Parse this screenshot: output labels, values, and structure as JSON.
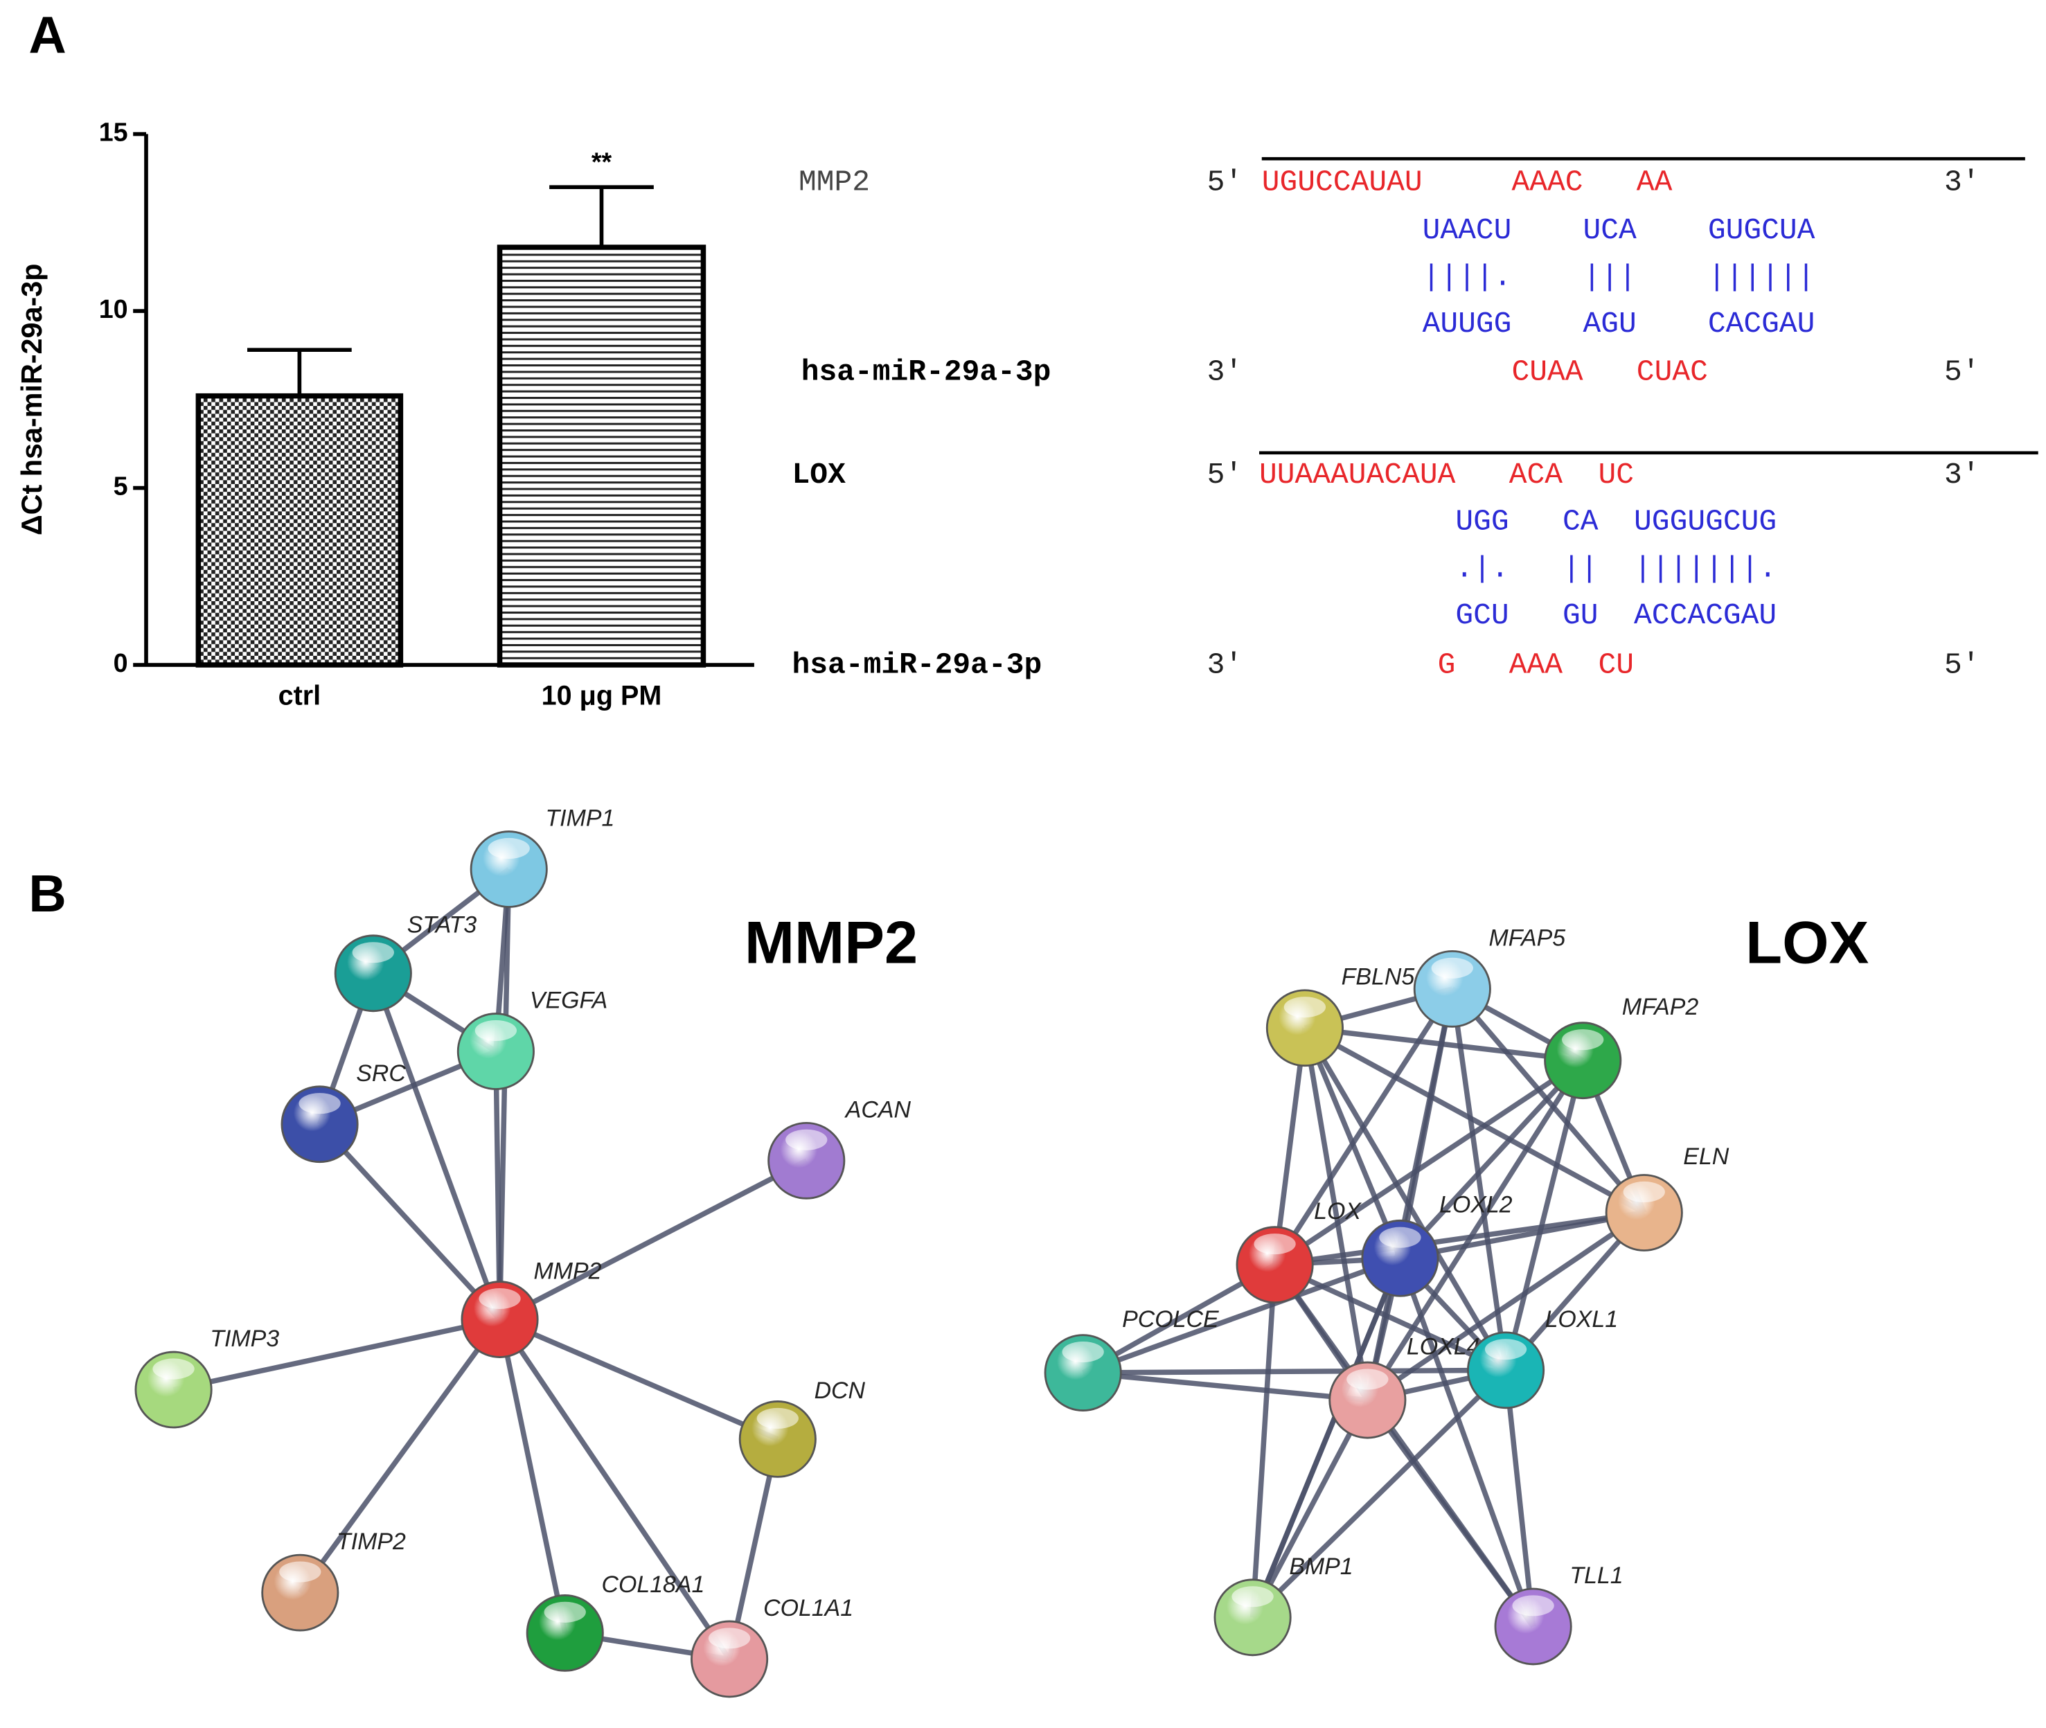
{
  "panels": [
    "A",
    "B"
  ],
  "chart_data": {
    "type": "bar",
    "y_label": "ΔCt hsa-miR-29a-3p",
    "categories": [
      "ctrl",
      "10 μg PM"
    ],
    "values": [
      7.6,
      11.8
    ],
    "errors": [
      1.3,
      1.7
    ],
    "annotation": "**",
    "ylim": [
      0,
      15
    ],
    "yticks": [
      0,
      5,
      10,
      15
    ]
  },
  "alignments": [
    {
      "target": "MMP2",
      "mirna": "hsa-miR-29a-3p",
      "target_ends": [
        "5'",
        "3'"
      ],
      "mirna_ends": [
        "3'",
        "5'"
      ],
      "rows": [
        "UGUCCAUAU     AAAC   AA",
        "         UAACU    UCA    GUGCUA",
        "         ||||.    |||    ||||||",
        "         AUUGG    AGU    CACGAU",
        "              CUAA   CUAC"
      ],
      "row_colors": [
        "#e8262a",
        "#2b2bd6",
        "#2b2bd6",
        "#2b2bd6",
        "#e8262a"
      ]
    },
    {
      "target": "LOX",
      "mirna": "hsa-miR-29a-3p",
      "target_ends": [
        "5'",
        "3'"
      ],
      "mirna_ends": [
        "3'",
        "5'"
      ],
      "rows": [
        "UUAAAUACAUA   ACA  UC",
        "           UGG   CA  UGGUGCUG",
        "           .|.   ||  |||||||.",
        "           GCU   GU  ACCACGAU",
        "          G   AAA  CU"
      ],
      "row_colors": [
        "#e8262a",
        "#2b2bd6",
        "#2b2bd6",
        "#2b2bd6",
        "#e8262a"
      ]
    }
  ],
  "networks": [
    {
      "title": "MMP2",
      "nodes": [
        {
          "label": "TIMP1",
          "color": "#7ec8e3"
        },
        {
          "label": "STAT3",
          "color": "#1a9e96"
        },
        {
          "label": "VEGFA",
          "color": "#5fd6a8"
        },
        {
          "label": "SRC",
          "color": "#3c4fa8"
        },
        {
          "label": "ACAN",
          "color": "#a17bd1"
        },
        {
          "label": "MMP2",
          "color": "#e03b3b"
        },
        {
          "label": "TIMP3",
          "color": "#a6d97e"
        },
        {
          "label": "DCN",
          "color": "#b5ad3f"
        },
        {
          "label": "TIMP2",
          "color": "#d9a07e"
        },
        {
          "label": "COL18A1",
          "color": "#1f9e3e"
        },
        {
          "label": "COL1A1",
          "color": "#e59a9f"
        }
      ]
    },
    {
      "title": "LOX",
      "nodes": [
        {
          "label": "FBLN5",
          "color": "#c9c256"
        },
        {
          "label": "MFAP5",
          "color": "#8ccde8"
        },
        {
          "label": "MFAP2",
          "color": "#2ea84a"
        },
        {
          "label": "ELN",
          "color": "#e8b48c"
        },
        {
          "label": "LOX",
          "color": "#e03b3b"
        },
        {
          "label": "LOXL2",
          "color": "#3f4fb0"
        },
        {
          "label": "PCOLCE",
          "color": "#3db89a"
        },
        {
          "label": "LOXL4",
          "color": "#e8a0a0"
        },
        {
          "label": "LOXL1",
          "color": "#1ab5b5"
        },
        {
          "label": "BMP1",
          "color": "#a6d98a"
        },
        {
          "label": "TLL1",
          "color": "#a77ad6"
        }
      ]
    }
  ]
}
